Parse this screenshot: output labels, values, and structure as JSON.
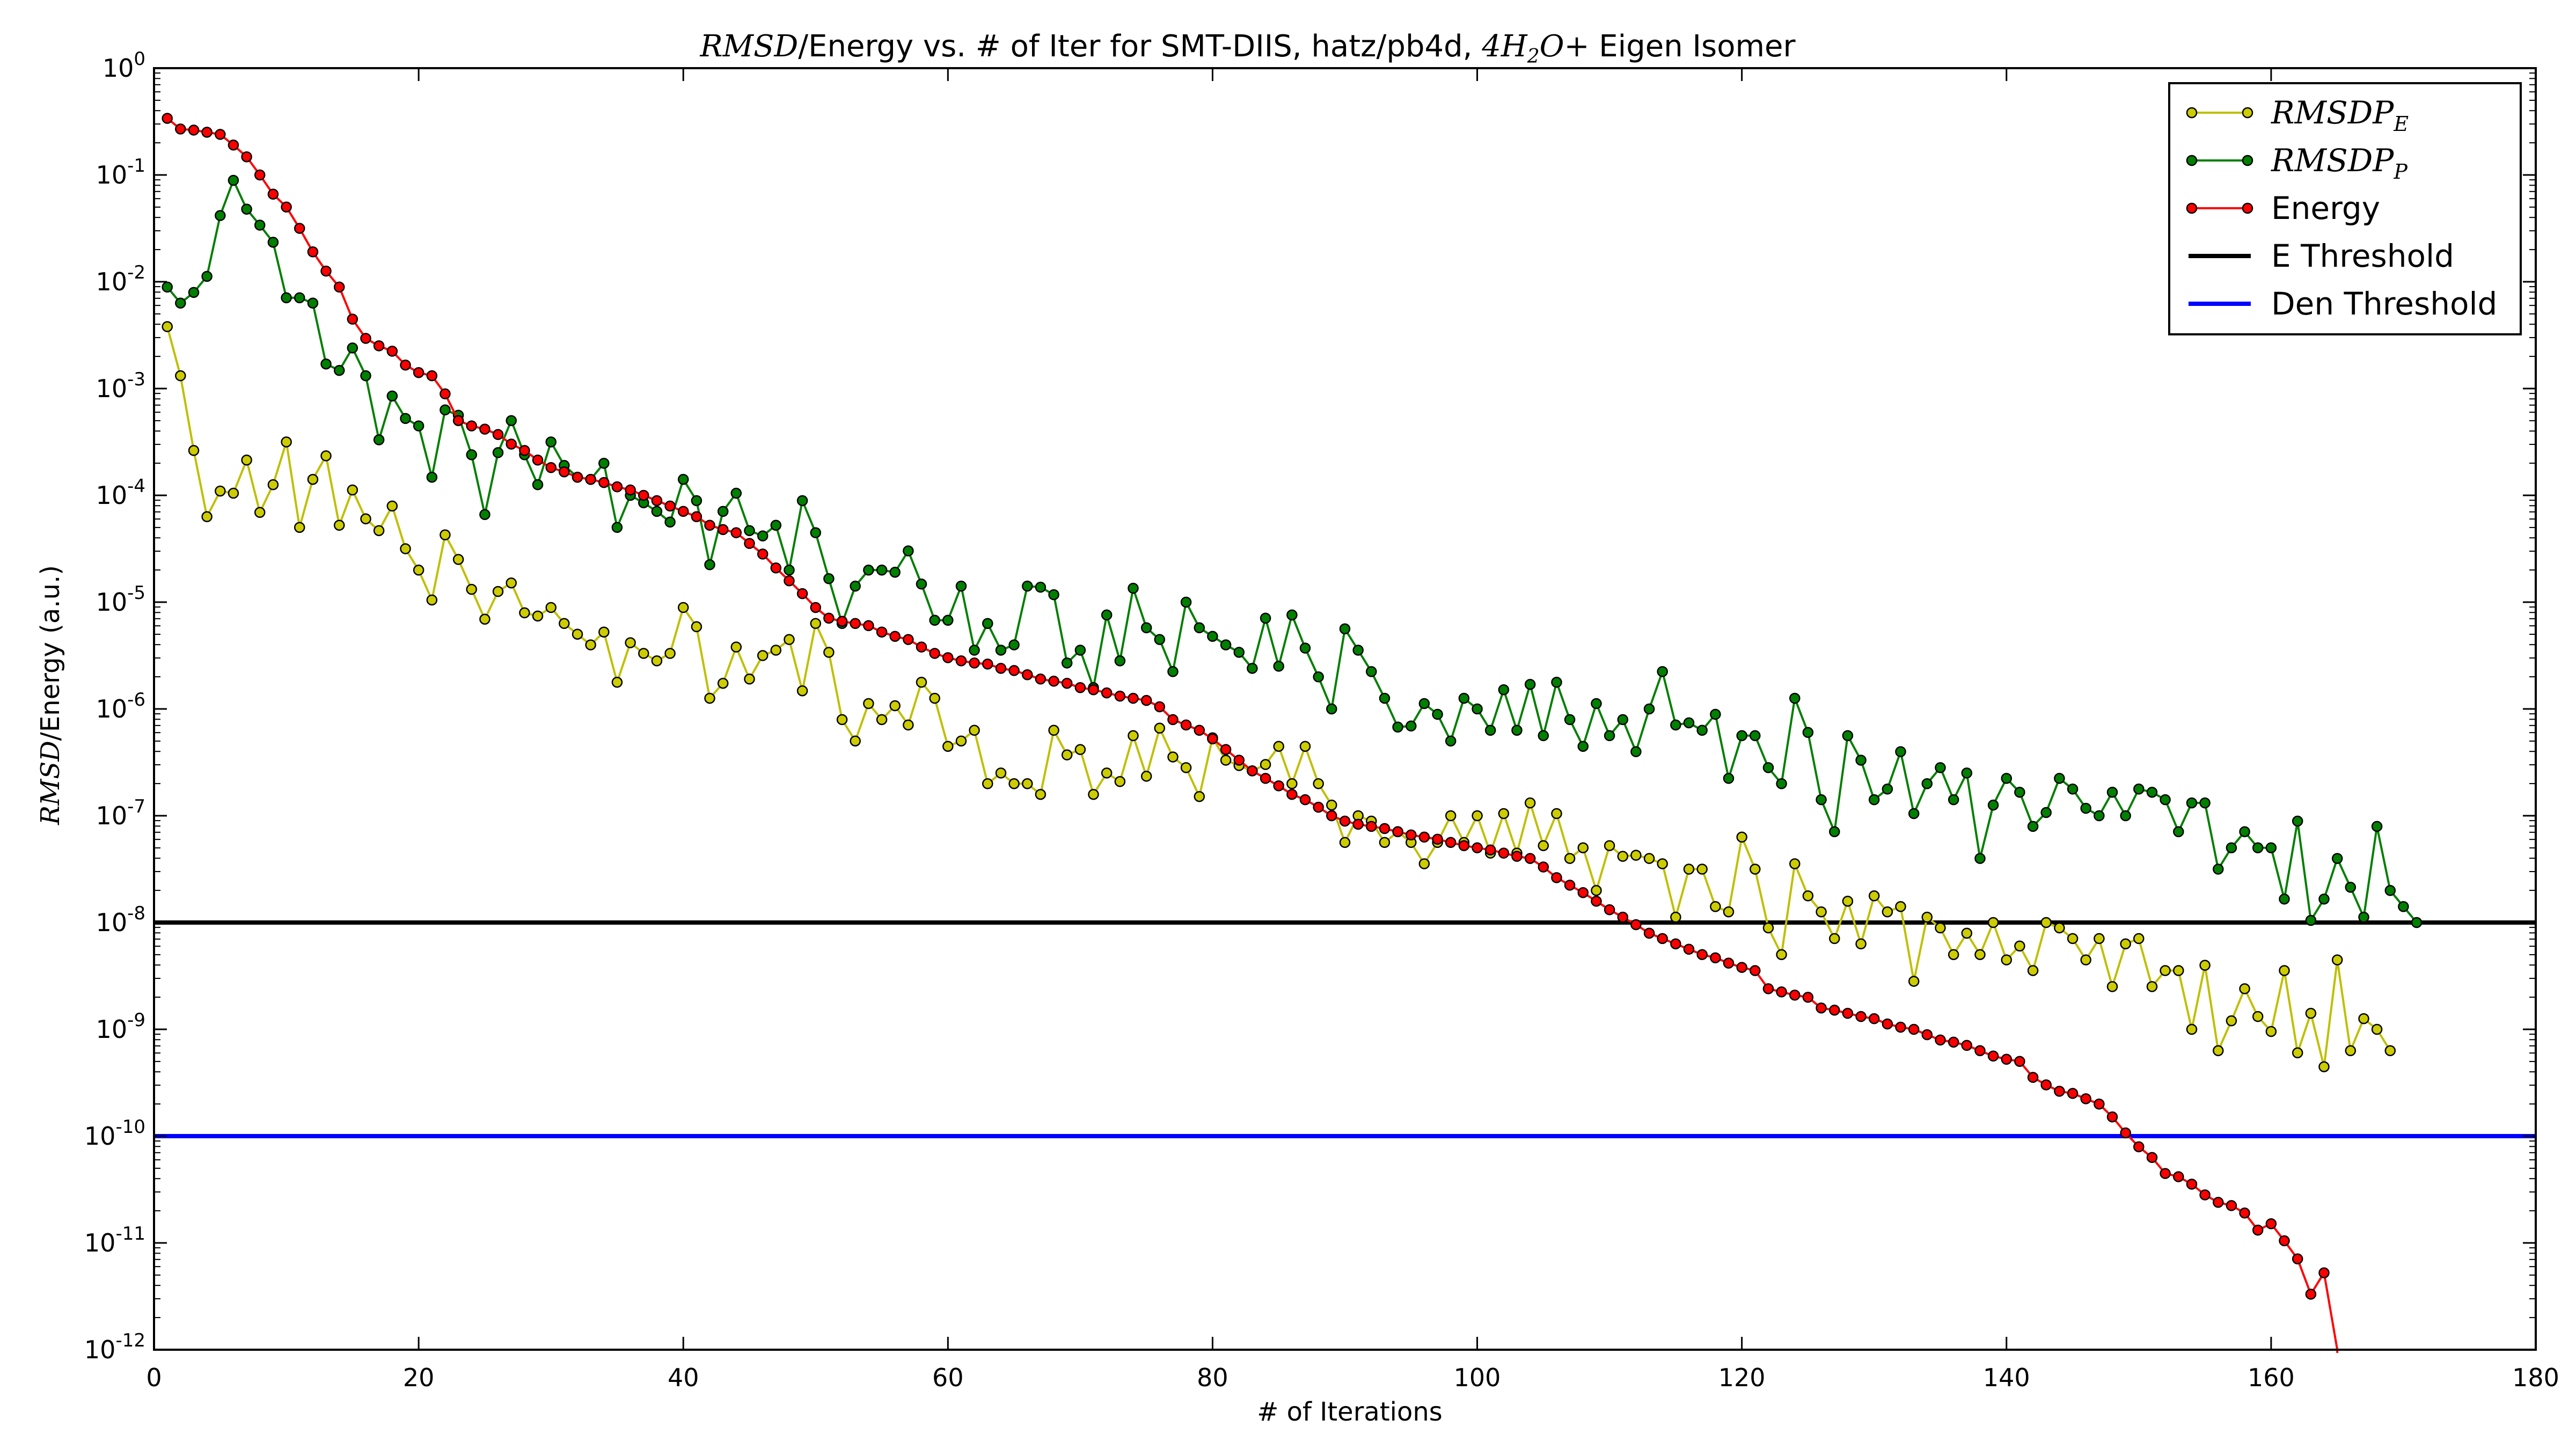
{
  "chart_data": {
    "type": "line",
    "title": {
      "pre_math": "RMSD",
      "mid": "/Energy vs. # of Iter for SMT-DIIS, hatz/pb4d, ",
      "math": "4H",
      "math_sub": "2",
      "math_post": "O+",
      "post": " Eigen Isomer"
    },
    "xlabel": "# of Iterations",
    "ylabel": {
      "math": "RMSD",
      "text": "/Energy (a.u.)"
    },
    "xlim": [
      0,
      180
    ],
    "ylim": [
      1e-12,
      1
    ],
    "yscale": "log",
    "xticks": [
      "0",
      "20",
      "40",
      "60",
      "80",
      "100",
      "120",
      "140",
      "160",
      "180"
    ],
    "yticks": [
      {
        "base": "10",
        "exp": "0"
      },
      {
        "base": "10",
        "exp": "-1"
      },
      {
        "base": "10",
        "exp": "-2"
      },
      {
        "base": "10",
        "exp": "-3"
      },
      {
        "base": "10",
        "exp": "-4"
      },
      {
        "base": "10",
        "exp": "-5"
      },
      {
        "base": "10",
        "exp": "-6"
      },
      {
        "base": "10",
        "exp": "-7"
      },
      {
        "base": "10",
        "exp": "-8"
      },
      {
        "base": "10",
        "exp": "-9"
      },
      {
        "base": "10",
        "exp": "-10"
      },
      {
        "base": "10",
        "exp": "-11"
      },
      {
        "base": "10",
        "exp": "-12"
      }
    ],
    "grid": false,
    "legend_position": "top-right",
    "thresholds": [
      {
        "name": "E Threshold",
        "value": 1e-08,
        "color": "#000000"
      },
      {
        "name": "Den Threshold",
        "value": 1e-10,
        "color": "#0000ff"
      }
    ],
    "series": [
      {
        "name": "RMSDP",
        "name_sub": "E",
        "math": true,
        "color": "#bfbf00",
        "marker_fill": "#cccc00",
        "x_start": 1,
        "log10_values": [
          -2.42,
          -2.88,
          -3.58,
          -4.2,
          -3.96,
          -3.98,
          -3.67,
          -4.16,
          -3.9,
          -3.5,
          -4.3,
          -3.85,
          -3.63,
          -4.28,
          -3.95,
          -4.22,
          -4.33,
          -4.1,
          -4.5,
          -4.7,
          -4.98,
          -4.37,
          -4.6,
          -4.88,
          -5.16,
          -4.9,
          -4.82,
          -5.1,
          -5.13,
          -5.05,
          -5.2,
          -5.3,
          -5.4,
          -5.28,
          -5.75,
          -5.38,
          -5.48,
          -5.55,
          -5.48,
          -5.05,
          -5.23,
          -5.9,
          -5.76,
          -5.42,
          -5.72,
          -5.5,
          -5.45,
          -5.35,
          -5.83,
          -5.2,
          -5.47,
          -6.1,
          -6.3,
          -5.95,
          -6.1,
          -5.97,
          -6.15,
          -5.75,
          -5.9,
          -6.35,
          -6.3,
          -6.2,
          -6.7,
          -6.6,
          -6.7,
          -6.7,
          -6.8,
          -6.2,
          -6.43,
          -6.38,
          -6.8,
          -6.6,
          -6.68,
          -6.25,
          -6.63,
          -6.18,
          -6.45,
          -6.55,
          -6.82,
          -6.27,
          -6.48,
          -6.53,
          -6.58,
          -6.52,
          -6.35,
          -6.7,
          -6.35,
          -6.7,
          -6.9,
          -7.25,
          -7.0,
          -7.05,
          -7.25,
          -7.15,
          -7.25,
          -7.45,
          -7.25,
          -7.0,
          -7.25,
          -7.0,
          -7.35,
          -6.98,
          -7.35,
          -6.88,
          -7.28,
          -6.98,
          -7.4,
          -7.3,
          -7.7,
          -7.28,
          -7.38,
          -7.37,
          -7.4,
          -7.45,
          -7.95,
          -7.5,
          -7.5,
          -7.85,
          -7.9,
          -7.2,
          -7.5,
          -8.05,
          -8.3,
          -7.45,
          -7.75,
          -7.9,
          -8.15,
          -7.8,
          -8.2,
          -7.75,
          -7.9,
          -7.85,
          -8.55,
          -7.95,
          -8.05,
          -8.3,
          -8.1,
          -8.3,
          -8.0,
          -8.35,
          -8.22,
          -8.45,
          -8.0,
          -8.05,
          -8.15,
          -8.35,
          -8.15,
          -8.6,
          -8.2,
          -8.15,
          -8.6,
          -8.45,
          -8.45,
          -9.0,
          -8.4,
          -9.2,
          -8.92,
          -8.62,
          -8.88,
          -9.02,
          -8.45,
          -9.22,
          -8.85,
          -9.35,
          -8.35,
          -9.2,
          -8.9,
          -9.0,
          -9.2
        ]
      },
      {
        "name": "RMSDP",
        "name_sub": "P",
        "math": true,
        "color": "#007f00",
        "marker_fill": "#008000",
        "x_start": 1,
        "log10_values": [
          -2.05,
          -2.2,
          -2.1,
          -1.95,
          -1.38,
          -1.05,
          -1.32,
          -1.47,
          -1.63,
          -2.15,
          -2.15,
          -2.2,
          -2.77,
          -2.83,
          -2.62,
          -2.88,
          -3.48,
          -3.07,
          -3.28,
          -3.35,
          -3.83,
          -3.2,
          -3.25,
          -3.62,
          -4.18,
          -3.6,
          -3.3,
          -3.62,
          -3.9,
          -3.5,
          -3.72,
          -3.83,
          -3.85,
          -3.7,
          -4.3,
          -4.0,
          -4.07,
          -4.15,
          -4.25,
          -3.85,
          -4.05,
          -4.65,
          -4.15,
          -3.98,
          -4.33,
          -4.38,
          -4.28,
          -4.7,
          -4.05,
          -4.35,
          -4.78,
          -5.2,
          -4.85,
          -4.7,
          -4.7,
          -4.72,
          -4.52,
          -4.83,
          -5.17,
          -5.17,
          -4.85,
          -5.45,
          -5.2,
          -5.45,
          -5.4,
          -4.85,
          -4.86,
          -4.93,
          -5.57,
          -5.45,
          -5.8,
          -5.12,
          -5.55,
          -4.87,
          -5.24,
          -5.35,
          -5.65,
          -5.0,
          -5.24,
          -5.32,
          -5.4,
          -5.47,
          -5.62,
          -5.15,
          -5.6,
          -5.12,
          -5.43,
          -5.7,
          -6.0,
          -5.25,
          -5.45,
          -5.65,
          -5.9,
          -6.17,
          -6.16,
          -5.95,
          -6.05,
          -6.3,
          -5.9,
          -6.0,
          -6.2,
          -5.82,
          -6.2,
          -5.77,
          -6.25,
          -5.75,
          -6.1,
          -6.35,
          -5.95,
          -6.25,
          -6.1,
          -6.4,
          -6.0,
          -5.65,
          -6.15,
          -6.13,
          -6.2,
          -6.05,
          -6.65,
          -6.25,
          -6.25,
          -6.55,
          -6.7,
          -5.9,
          -6.22,
          -6.85,
          -7.15,
          -6.25,
          -6.48,
          -6.85,
          -6.75,
          -6.4,
          -6.98,
          -6.7,
          -6.55,
          -6.85,
          -6.6,
          -7.4,
          -6.9,
          -6.65,
          -6.78,
          -7.1,
          -6.97,
          -6.65,
          -6.75,
          -6.93,
          -7.0,
          -6.78,
          -7.0,
          -6.75,
          -6.78,
          -6.85,
          -7.15,
          -6.88,
          -6.88,
          -7.5,
          -7.3,
          -7.15,
          -7.3,
          -7.3,
          -7.78,
          -7.05,
          -7.98,
          -7.78,
          -7.4,
          -7.67,
          -7.95,
          -7.1,
          -7.7,
          -7.85,
          -8.0
        ]
      },
      {
        "name": "Energy",
        "math": false,
        "color": "#ff0000",
        "marker_fill": "#ff0000",
        "x_start": 1,
        "log10_values": [
          -0.47,
          -0.57,
          -0.58,
          -0.6,
          -0.62,
          -0.72,
          -0.83,
          -1.0,
          -1.18,
          -1.3,
          -1.5,
          -1.72,
          -1.9,
          -2.05,
          -2.35,
          -2.53,
          -2.6,
          -2.65,
          -2.78,
          -2.85,
          -2.88,
          -3.05,
          -3.3,
          -3.35,
          -3.38,
          -3.43,
          -3.52,
          -3.58,
          -3.67,
          -3.74,
          -3.78,
          -3.83,
          -3.85,
          -3.88,
          -3.92,
          -3.95,
          -4.0,
          -4.05,
          -4.1,
          -4.15,
          -4.2,
          -4.28,
          -4.32,
          -4.35,
          -4.45,
          -4.55,
          -4.68,
          -4.8,
          -4.92,
          -5.05,
          -5.15,
          -5.18,
          -5.2,
          -5.22,
          -5.28,
          -5.32,
          -5.35,
          -5.42,
          -5.48,
          -5.52,
          -5.55,
          -5.57,
          -5.58,
          -5.62,
          -5.64,
          -5.68,
          -5.72,
          -5.74,
          -5.76,
          -5.8,
          -5.82,
          -5.85,
          -5.88,
          -5.9,
          -5.92,
          -5.98,
          -6.1,
          -6.15,
          -6.2,
          -6.28,
          -6.38,
          -6.48,
          -6.58,
          -6.65,
          -6.72,
          -6.8,
          -6.85,
          -6.92,
          -7.0,
          -7.05,
          -7.08,
          -7.1,
          -7.12,
          -7.15,
          -7.18,
          -7.2,
          -7.22,
          -7.25,
          -7.28,
          -7.3,
          -7.32,
          -7.35,
          -7.38,
          -7.4,
          -7.48,
          -7.58,
          -7.65,
          -7.72,
          -7.8,
          -7.88,
          -7.95,
          -8.02,
          -8.1,
          -8.15,
          -8.2,
          -8.25,
          -8.3,
          -8.33,
          -8.38,
          -8.42,
          -8.45,
          -8.62,
          -8.65,
          -8.68,
          -8.7,
          -8.8,
          -8.82,
          -8.85,
          -8.88,
          -8.9,
          -8.95,
          -8.98,
          -9.0,
          -9.05,
          -9.1,
          -9.12,
          -9.15,
          -9.2,
          -9.25,
          -9.28,
          -9.3,
          -9.45,
          -9.52,
          -9.58,
          -9.6,
          -9.65,
          -9.7,
          -9.82,
          -9.97,
          -10.1,
          -10.2,
          -10.35,
          -10.38,
          -10.45,
          -10.55,
          -10.62,
          -10.65,
          -10.72,
          -10.88,
          -10.82,
          -10.98,
          -11.15,
          -11.48,
          -11.28,
          -12.0
        ]
      }
    ]
  }
}
